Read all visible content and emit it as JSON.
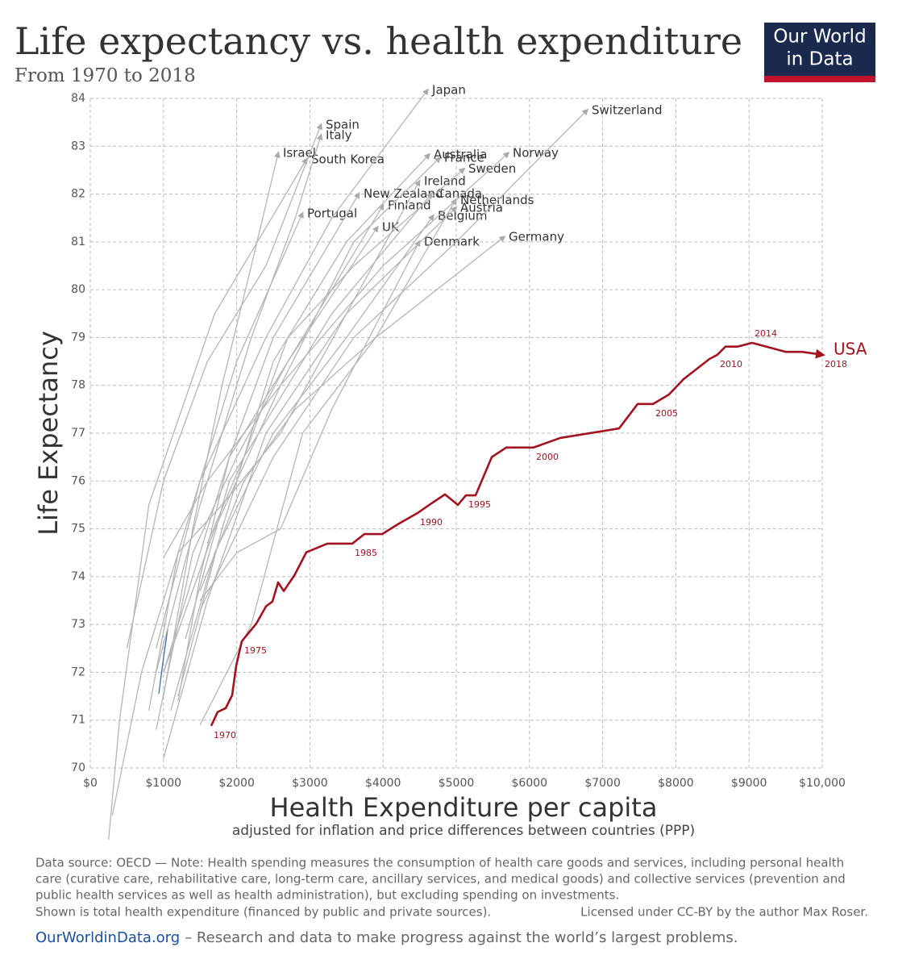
{
  "logo": {
    "line1": "Our World",
    "line2": "in Data"
  },
  "notes": [
    "Data source: OECD — Note: Health spending measures the consumption of health care goods and services, including personal health",
    "care (curative care, rehabilitative care, long-term care, ancillary services, and medical goods) and collective services (prevention and",
    "public health services as well as health administration), but excluding spending on investments.",
    "Shown is total health expenditure (financed by public and private sources)."
  ],
  "license": "Licensed under CC-BY by the author Max Roser.",
  "footer": {
    "link": "OurWorldinData.org",
    "text": "– Research and data to make progress against the world’s largest problems."
  },
  "chart_data": {
    "type": "line",
    "title": "Life expectancy vs. health expenditure",
    "subtitle": "From 1970 to 2018",
    "x_label": "Health Expenditure per capita",
    "x_sublabel": "adjusted for inflation and price differences between countries (PPP)",
    "y_label": "Life Expectancy",
    "xlim": [
      0,
      10000
    ],
    "ylim": [
      70,
      84
    ],
    "grid": true,
    "xticks": [
      {
        "value": 0,
        "label": "$0"
      },
      {
        "value": 1000,
        "label": "$1000"
      },
      {
        "value": 2000,
        "label": "$2000"
      },
      {
        "value": 3000,
        "label": "$3000"
      },
      {
        "value": 4000,
        "label": "$4000"
      },
      {
        "value": 5000,
        "label": "$5000"
      },
      {
        "value": 6000,
        "label": "$6000"
      },
      {
        "value": 7000,
        "label": "$7000"
      },
      {
        "value": 8000,
        "label": "$8000"
      },
      {
        "value": 9000,
        "label": "$9000"
      },
      {
        "value": 10000,
        "label": "$10,000"
      }
    ],
    "yticks": [
      70,
      71,
      72,
      73,
      74,
      75,
      76,
      77,
      78,
      79,
      80,
      81,
      82,
      83,
      84
    ],
    "series": [
      {
        "name": "USA",
        "color": "#a2121f",
        "x": [
          1652,
          1740,
          1850,
          1938,
          1993,
          2070,
          2269,
          2401,
          2489,
          2566,
          2643,
          2786,
          2952,
          3238,
          3579,
          3744,
          3987,
          4207,
          4471,
          4659,
          4846,
          5022,
          5132,
          5264,
          5485,
          5683,
          6057,
          6420,
          7225,
          7478,
          7687,
          7907,
          8106,
          8458,
          8568,
          8678,
          8844,
          9042,
          9504,
          9725,
          10000
        ],
        "values": [
          70.88,
          71.17,
          71.25,
          71.52,
          72.13,
          72.65,
          73.02,
          73.38,
          73.48,
          73.88,
          73.7,
          74.02,
          74.51,
          74.69,
          74.69,
          74.89,
          74.89,
          75.1,
          75.33,
          75.53,
          75.72,
          75.5,
          75.7,
          75.7,
          76.5,
          76.7,
          76.7,
          76.9,
          77.1,
          77.61,
          77.61,
          77.81,
          78.13,
          78.55,
          78.64,
          78.81,
          78.81,
          78.89,
          78.7,
          78.7,
          78.64
        ],
        "point_labels": [
          "1970",
          null,
          null,
          null,
          null,
          "1975",
          null,
          null,
          null,
          null,
          null,
          null,
          null,
          null,
          "1985",
          null,
          null,
          null,
          "1990",
          null,
          null,
          null,
          "1995",
          null,
          null,
          null,
          "2000",
          null,
          null,
          null,
          "2005",
          null,
          null,
          null,
          "2010",
          null,
          null,
          "2014",
          null,
          null,
          "2018"
        ]
      },
      {
        "name": "Japan",
        "color": "#b5b5b5",
        "x": [
          900,
          1500,
          2400,
          3300,
          4604
        ],
        "values": [
          72.5,
          76,
          79,
          81.5,
          84.17
        ]
      },
      {
        "name": "Switzerland",
        "color": "#b5b5b5",
        "x": [
          1500,
          2500,
          3600,
          5000,
          6784
        ],
        "values": [
          73.3,
          76.5,
          79,
          81,
          83.75
        ]
      },
      {
        "name": "Spain",
        "color": "#b5b5b5",
        "x": [
          500,
          1000,
          1600,
          2400,
          3150
        ],
        "values": [
          72.5,
          76,
          78.5,
          80.5,
          83.44
        ]
      },
      {
        "name": "Italy",
        "color": "#b5b5b5",
        "x": [
          900,
          1500,
          2200,
          2800,
          3150
        ],
        "values": [
          72,
          75.5,
          79,
          81.5,
          83.22
        ]
      },
      {
        "name": "Israel",
        "color": "#b5b5b5",
        "x": [
          1000,
          1400,
          1800,
          2200,
          2566
        ],
        "values": [
          71.5,
          75,
          78,
          80.5,
          82.85
        ]
      },
      {
        "name": "South Korea",
        "color": "#b5b5b5",
        "x": [
          250,
          400,
          800,
          1700,
          2952
        ],
        "values": [
          68.5,
          71,
          75.5,
          79.5,
          82.72
        ]
      },
      {
        "name": "Australia",
        "color": "#b5b5b5",
        "x": [
          1200,
          1800,
          2500,
          3500,
          4626
        ],
        "values": [
          71.5,
          75,
          78.5,
          81,
          82.82
        ]
      },
      {
        "name": "France",
        "color": "#b5b5b5",
        "x": [
          1000,
          1700,
          2600,
          3600,
          4769
        ],
        "values": [
          72,
          75,
          78,
          81,
          82.75
        ]
      },
      {
        "name": "Norway",
        "color": "#b5b5b5",
        "x": [
          1000,
          1600,
          2600,
          4000,
          5705
        ],
        "values": [
          74.4,
          76,
          78,
          80.5,
          82.85
        ]
      },
      {
        "name": "Sweden",
        "color": "#b5b5b5",
        "x": [
          1600,
          2100,
          2700,
          3600,
          5099
        ],
        "values": [
          74.7,
          76.5,
          79,
          80.5,
          82.52
        ]
      },
      {
        "name": "Ireland",
        "color": "#b5b5b5",
        "x": [
          800,
          1200,
          1800,
          2600,
          4493
        ],
        "values": [
          71.2,
          74.5,
          75.5,
          77,
          82.26
        ]
      },
      {
        "name": "Canada",
        "color": "#b5b5b5",
        "x": [
          1300,
          1900,
          2700,
          3300,
          4659
        ],
        "values": [
          72.7,
          76,
          78,
          79.5,
          82
        ]
      },
      {
        "name": "New Zealand",
        "color": "#b5b5b5",
        "x": [
          1200,
          1500,
          1900,
          2500,
          3667
        ],
        "values": [
          71.4,
          74,
          76.5,
          79,
          82
        ]
      },
      {
        "name": "Netherlands",
        "color": "#b5b5b5",
        "x": [
          1500,
          2100,
          2800,
          3900,
          4989
        ],
        "values": [
          73.7,
          76,
          77.5,
          79,
          81.87
        ]
      },
      {
        "name": "Finland",
        "color": "#b5b5b5",
        "x": [
          900,
          1400,
          2000,
          2700,
          3998
        ],
        "values": [
          70.8,
          74.5,
          76.5,
          78.5,
          81.76
        ]
      },
      {
        "name": "Austria",
        "color": "#b5b5b5",
        "x": [
          1000,
          1600,
          2400,
          3500,
          4989
        ],
        "values": [
          70.2,
          73.5,
          77,
          79.5,
          81.71
        ]
      },
      {
        "name": "Portugal",
        "color": "#b5b5b5",
        "x": [
          300,
          700,
          1300,
          2000,
          2897
        ],
        "values": [
          69,
          72,
          75,
          78.5,
          81.59
        ]
      },
      {
        "name": "Belgium",
        "color": "#b5b5b5",
        "x": [
          1100,
          1700,
          2500,
          3500,
          4681
        ],
        "values": [
          71.2,
          74.5,
          77,
          79,
          81.54
        ]
      },
      {
        "name": "UK",
        "color": "#b5b5b5",
        "x": [
          1000,
          1400,
          1900,
          2700,
          3921
        ],
        "values": [
          72,
          74,
          76.5,
          78.5,
          81.3
        ]
      },
      {
        "name": "Germany",
        "color": "#b5b5b5",
        "x": [
          1500,
          2200,
          2900,
          3900,
          5650
        ],
        "values": [
          70.9,
          73,
          77,
          79,
          81.1
        ]
      },
      {
        "name": "Denmark",
        "color": "#b5b5b5",
        "x": [
          1500,
          2000,
          2600,
          3300,
          4493
        ],
        "values": [
          73.5,
          74.5,
          75,
          77.5,
          81
        ]
      },
      {
        "color": "#3a6fb0",
        "x": [
          936,
          1000,
          1057
        ],
        "values": [
          71.55,
          72.3,
          72.9
        ]
      }
    ]
  }
}
